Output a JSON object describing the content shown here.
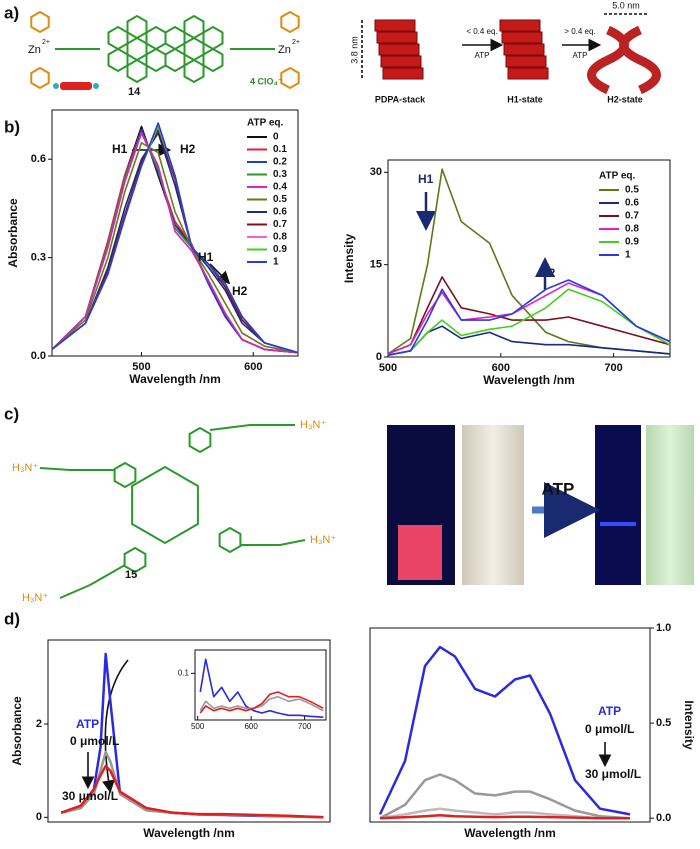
{
  "figure": {
    "panels": [
      "a)",
      "b)",
      "c)",
      "d)"
    ],
    "compound_a": "14",
    "counter_ion": "4 ClO₄⁻",
    "zn": "Zn",
    "zn_charge": "2+",
    "compound_c": "15",
    "amine": "H₃N⁺",
    "states": [
      "PDPA-stack",
      "H1-state",
      "H2-state"
    ],
    "dim_stack": "3.8 nm",
    "dim_helix": "5.0 nm",
    "step1": "< 0.4 eq.",
    "step2": "> 0.4 eq.",
    "atp": "ATP"
  },
  "chart_data": [
    {
      "type": "line",
      "y_label": "Absorbance",
      "x_label": "Wavelength /nm",
      "xlim": [
        420,
        640
      ],
      "xticks": [
        500,
        600
      ],
      "ylim": [
        0,
        0.75
      ],
      "yticks": [
        {
          "value": 0,
          "label": "0.0"
        },
        0.3,
        0.6
      ],
      "legend_title": "ATP eq.",
      "annotations": [
        "H1",
        "H2",
        "H1",
        "H2"
      ],
      "x": [
        420,
        450,
        470,
        485,
        500,
        515,
        530,
        545,
        560,
        575,
        590,
        610,
        640
      ],
      "series": [
        {
          "name": "0",
          "color": "#111111",
          "values": [
            0.02,
            0.12,
            0.35,
            0.55,
            0.7,
            0.55,
            0.4,
            0.34,
            0.22,
            0.12,
            0.05,
            0.02,
            0.01
          ]
        },
        {
          "name": "0.1",
          "color": "#e0203a",
          "values": [
            0.02,
            0.12,
            0.35,
            0.55,
            0.69,
            0.56,
            0.41,
            0.34,
            0.22,
            0.12,
            0.05,
            0.02,
            0.01
          ]
        },
        {
          "name": "0.2",
          "color": "#2040c0",
          "values": [
            0.02,
            0.12,
            0.34,
            0.54,
            0.69,
            0.56,
            0.4,
            0.33,
            0.22,
            0.12,
            0.05,
            0.02,
            0.01
          ]
        },
        {
          "name": "0.3",
          "color": "#2a9a2a",
          "values": [
            0.02,
            0.12,
            0.34,
            0.54,
            0.68,
            0.57,
            0.39,
            0.33,
            0.23,
            0.13,
            0.05,
            0.02,
            0.01
          ]
        },
        {
          "name": "0.4",
          "color": "#e020c0",
          "values": [
            0.02,
            0.12,
            0.33,
            0.53,
            0.68,
            0.58,
            0.38,
            0.32,
            0.23,
            0.13,
            0.05,
            0.02,
            0.01
          ]
        },
        {
          "name": "0.5",
          "color": "#6b7a1a",
          "values": [
            0.02,
            0.11,
            0.3,
            0.5,
            0.65,
            0.62,
            0.44,
            0.33,
            0.25,
            0.16,
            0.07,
            0.03,
            0.01
          ]
        },
        {
          "name": "0.6",
          "color": "#1a2a80",
          "values": [
            0.02,
            0.1,
            0.27,
            0.45,
            0.6,
            0.68,
            0.52,
            0.33,
            0.27,
            0.2,
            0.1,
            0.04,
            0.01
          ]
        },
        {
          "name": "0.7",
          "color": "#7a1020",
          "values": [
            0.02,
            0.1,
            0.26,
            0.43,
            0.59,
            0.69,
            0.54,
            0.33,
            0.28,
            0.21,
            0.11,
            0.04,
            0.01
          ]
        },
        {
          "name": "0.8",
          "color": "#ff60c0",
          "values": [
            0.02,
            0.1,
            0.25,
            0.42,
            0.58,
            0.7,
            0.55,
            0.33,
            0.28,
            0.22,
            0.12,
            0.04,
            0.01
          ]
        },
        {
          "name": "0.9",
          "color": "#40d020",
          "values": [
            0.02,
            0.1,
            0.25,
            0.42,
            0.58,
            0.7,
            0.55,
            0.33,
            0.28,
            0.22,
            0.12,
            0.04,
            0.01
          ]
        },
        {
          "name": "1",
          "color": "#2a3ae0",
          "values": [
            0.02,
            0.1,
            0.25,
            0.42,
            0.58,
            0.71,
            0.55,
            0.33,
            0.28,
            0.22,
            0.12,
            0.04,
            0.01
          ]
        }
      ]
    },
    {
      "type": "line",
      "y_label": "Intensity",
      "x_label": "Wavelength /nm",
      "xlim": [
        500,
        750
      ],
      "xticks": [
        500,
        600,
        700
      ],
      "ylim": [
        0,
        32
      ],
      "yticks": [
        0,
        15,
        30
      ],
      "legend_title": "ATP eq.",
      "annotations": [
        "H1",
        "H2"
      ],
      "x": [
        500,
        520,
        535,
        548,
        565,
        590,
        610,
        640,
        660,
        690,
        720,
        750
      ],
      "series": [
        {
          "name": "0.5",
          "color": "#5a7a1a",
          "values": [
            0.5,
            3,
            15,
            30.5,
            22,
            18.5,
            10,
            4,
            2.5,
            1.5,
            1,
            0.5
          ]
        },
        {
          "name": "0.6",
          "color": "#1a2a80",
          "values": [
            0.3,
            1,
            4,
            5,
            3,
            4,
            2.5,
            2,
            2,
            1.5,
            1,
            0.5
          ]
        },
        {
          "name": "0.7",
          "color": "#7a1020",
          "values": [
            0.5,
            2,
            8,
            13,
            8,
            7,
            6,
            6,
            6.5,
            5,
            3.5,
            2
          ]
        },
        {
          "name": "0.8",
          "color": "#e020c0",
          "values": [
            0.5,
            2,
            7,
            10.5,
            6,
            6.5,
            7,
            10,
            12,
            10,
            5,
            2.5
          ]
        },
        {
          "name": "0.9",
          "color": "#40d020",
          "values": [
            0.3,
            1,
            4,
            6,
            3.5,
            4.5,
            5,
            8,
            11,
            9,
            5,
            2
          ]
        },
        {
          "name": "1",
          "color": "#2a3ae0",
          "values": [
            0.3,
            1,
            6,
            11,
            6,
            6,
            7,
            11,
            12.5,
            10,
            5,
            2.5
          ]
        }
      ]
    },
    {
      "type": "line",
      "y_label": "Absorbance",
      "x_label": "Wavelength /nm",
      "xlim": [
        330,
        760
      ],
      "ylim": [
        -0.1,
        3.8
      ],
      "yticks": [
        0,
        2
      ],
      "annotations": [
        "ATP",
        "0 μmol/L",
        "30 μmol/L"
      ],
      "x": [
        350,
        380,
        400,
        410,
        418,
        425,
        440,
        480,
        520,
        560,
        600,
        650,
        700,
        750
      ],
      "series": [
        {
          "name": "0 μmol/L",
          "color": "#2a2ae0",
          "values": [
            0.1,
            0.2,
            0.6,
            1.5,
            3.5,
            2.5,
            0.5,
            0.15,
            0.1,
            0.06,
            0.05,
            0.03,
            0.02,
            0
          ]
        },
        {
          "name": "gray",
          "color": "#999999",
          "values": [
            0.1,
            0.2,
            0.5,
            1.0,
            1.4,
            1.2,
            0.5,
            0.15,
            0.1,
            0.06,
            0.06,
            0.04,
            0.02,
            0
          ]
        },
        {
          "name": "30 μmol/L",
          "color": "#e02020",
          "values": [
            0.1,
            0.25,
            0.6,
            0.9,
            1.1,
            1.0,
            0.55,
            0.2,
            0.1,
            0.07,
            0.07,
            0.05,
            0.03,
            0
          ]
        }
      ]
    },
    {
      "type": "line",
      "xlim": [
        495,
        740
      ],
      "xticks": [
        500,
        600,
        700
      ],
      "ylim": [
        0,
        0.15
      ],
      "yticks": [
        0.1
      ],
      "x": [
        505,
        515,
        530,
        545,
        560,
        575,
        590,
        605,
        620,
        635,
        650,
        670,
        690,
        710,
        735
      ],
      "series": [
        {
          "name": "blue",
          "color": "#2a2ae0",
          "values": [
            0.06,
            0.13,
            0.05,
            0.07,
            0.04,
            0.06,
            0.03,
            0.02,
            0.015,
            0.02,
            0.015,
            0.01,
            0.01,
            0.008,
            0.006
          ]
        },
        {
          "name": "gray",
          "color": "#999999",
          "values": [
            0.02,
            0.04,
            0.025,
            0.03,
            0.025,
            0.03,
            0.025,
            0.025,
            0.03,
            0.045,
            0.05,
            0.04,
            0.045,
            0.035,
            0.02
          ]
        },
        {
          "name": "red",
          "color": "#e02020",
          "values": [
            0.015,
            0.03,
            0.02,
            0.025,
            0.02,
            0.025,
            0.02,
            0.025,
            0.035,
            0.055,
            0.06,
            0.05,
            0.05,
            0.04,
            0.025
          ]
        }
      ]
    },
    {
      "type": "line",
      "y_label": "Intensity",
      "x_label": "Wavelength /nm",
      "xlim": [
        540,
        820
      ],
      "ylim": [
        -0.02,
        1.0
      ],
      "yticks": [
        {
          "value": 0,
          "label": "0.0"
        },
        0.5,
        {
          "value": 1,
          "label": "1.0"
        }
      ],
      "y_axis_side": "right",
      "annotations": [
        "ATP",
        "0 μmol/L",
        "30 μmol/L"
      ],
      "x": [
        550,
        575,
        595,
        610,
        625,
        645,
        665,
        685,
        700,
        720,
        745,
        770,
        800
      ],
      "series": [
        {
          "name": "0 μmol/L",
          "color": "#2a2ae0",
          "values": [
            0.02,
            0.3,
            0.8,
            0.9,
            0.85,
            0.68,
            0.64,
            0.73,
            0.75,
            0.55,
            0.2,
            0.05,
            0.02
          ]
        },
        {
          "name": "gray1",
          "color": "#999999",
          "values": [
            0.0,
            0.07,
            0.2,
            0.23,
            0.2,
            0.13,
            0.12,
            0.14,
            0.14,
            0.1,
            0.04,
            0.01,
            0.0
          ]
        },
        {
          "name": "gray2",
          "color": "#bbbbbb",
          "values": [
            0.0,
            0.02,
            0.04,
            0.05,
            0.04,
            0.03,
            0.02,
            0.03,
            0.03,
            0.02,
            0.01,
            0.0,
            0.0
          ]
        },
        {
          "name": "30 μmol/L",
          "color": "#e02020",
          "values": [
            0.0,
            0.005,
            0.01,
            0.015,
            0.01,
            0.008,
            0.006,
            0.008,
            0.008,
            0.006,
            0.003,
            0.0,
            0.0
          ]
        }
      ]
    }
  ]
}
